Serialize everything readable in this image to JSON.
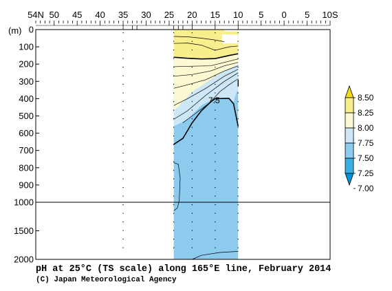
{
  "chart_data": {
    "type": "heatmap",
    "title": "pH at 25°C (TS scale) along 165°E line, February 2014",
    "credit": "(C) Japan Meteorological Agency",
    "x_axis": {
      "ticks": [
        {
          "value": 54,
          "label": "54N"
        },
        {
          "value": 50,
          "label": "50"
        },
        {
          "value": 45,
          "label": "45"
        },
        {
          "value": 40,
          "label": "40"
        },
        {
          "value": 35,
          "label": "35"
        },
        {
          "value": 30,
          "label": "30"
        },
        {
          "value": 25,
          "label": "25"
        },
        {
          "value": 20,
          "label": "20"
        },
        {
          "value": 15,
          "label": "15"
        },
        {
          "value": 10,
          "label": "10"
        },
        {
          "value": 5,
          "label": "5"
        },
        {
          "value": 0,
          "label": "0"
        },
        {
          "value": -5,
          "label": "5"
        },
        {
          "value": -10,
          "label": "10S"
        }
      ],
      "range": [
        54,
        -10
      ]
    },
    "y_axis": {
      "unit_label": "(m)",
      "ticks": [
        0,
        100,
        200,
        300,
        400,
        500,
        600,
        700,
        800,
        900,
        1000,
        1500,
        2000
      ],
      "tick_labels": [
        "0",
        "100",
        "200",
        "300",
        "400",
        "500",
        "600",
        "700",
        "800",
        "900",
        "1000",
        "1500",
        "2000"
      ],
      "range": [
        0,
        2000
      ],
      "scale_break": 1000
    },
    "stations_lat": [
      35,
      24,
      20,
      15,
      10
    ],
    "data_extent_lat": [
      24,
      10
    ],
    "colorbar": {
      "levels": [
        "8.50",
        "8.25",
        "8.00",
        "7.75",
        "7.50",
        "7.25",
        "7.00"
      ],
      "colors": [
        "#f2d91c",
        "#f8ee8c",
        "#fcf9d2",
        "#cde7f6",
        "#8ccbee",
        "#3bb0e6",
        "#0095d9"
      ]
    },
    "contour_labels": [
      {
        "text": "7.5",
        "lat": 14.5,
        "depth": 410
      }
    ],
    "regions_approx": [
      {
        "color_level": "8.00-8.25",
        "depth_range": [
          0,
          150
        ],
        "lat_range": [
          24,
          10
        ]
      },
      {
        "color_level": "7.75-8.00",
        "depth_range": [
          150,
          420
        ],
        "lat_range": [
          24,
          10
        ]
      },
      {
        "color_level": "7.50-7.75",
        "depth_range": [
          250,
          660
        ],
        "lat_range": [
          24,
          10
        ]
      },
      {
        "color_level": "7.25-7.50",
        "depth_range": [
          400,
          2000
        ],
        "lat_range": [
          24,
          10
        ]
      }
    ]
  }
}
